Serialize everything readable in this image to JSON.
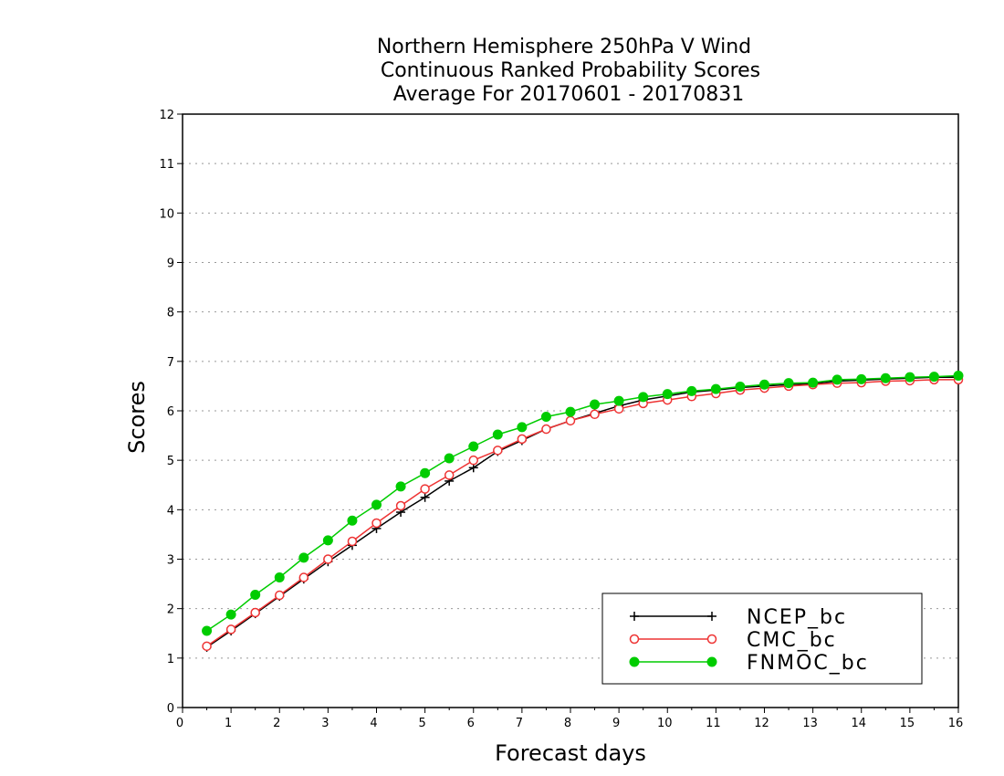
{
  "chart_data": {
    "type": "line",
    "title": [
      "Northern Hemisphere 250hPa V Wind",
      "Continuous Ranked Probability Scores",
      "Average For 20170601 - 20170831"
    ],
    "xlabel": "Forecast days",
    "ylabel": "Scores",
    "xlim": [
      0,
      16
    ],
    "ylim": [
      0,
      12
    ],
    "xticks": [
      "0",
      "1",
      "2",
      "3",
      "4",
      "5",
      "6",
      "7",
      "8",
      "9",
      "10",
      "11",
      "12",
      "13",
      "14",
      "15",
      "16"
    ],
    "yticks": [
      "0",
      "1",
      "2",
      "3",
      "4",
      "5",
      "6",
      "7",
      "8",
      "9",
      "10",
      "11",
      "12"
    ],
    "grid": "horizontal dotted",
    "legend_position": "bottom-right",
    "x": [
      0.5,
      1,
      1.5,
      2,
      2.5,
      3,
      3.5,
      4,
      4.5,
      5,
      5.5,
      6,
      6.5,
      7,
      7.5,
      8,
      8.5,
      9,
      9.5,
      10,
      10.5,
      11,
      11.5,
      12,
      12.5,
      13,
      13.5,
      14,
      14.5,
      15,
      15.5,
      16
    ],
    "series": [
      {
        "name": "NCEP_bc",
        "color": "#000000",
        "marker": "plus",
        "values": [
          1.22,
          1.55,
          1.9,
          2.25,
          2.6,
          2.95,
          3.28,
          3.62,
          3.95,
          4.25,
          4.58,
          4.85,
          5.18,
          5.4,
          5.63,
          5.8,
          5.95,
          6.1,
          6.22,
          6.3,
          6.38,
          6.42,
          6.47,
          6.5,
          6.53,
          6.55,
          6.6,
          6.62,
          6.64,
          6.66,
          6.68,
          6.68
        ]
      },
      {
        "name": "CMC_bc",
        "color": "#ee3333",
        "marker": "open-circle",
        "values": [
          1.24,
          1.58,
          1.92,
          2.27,
          2.63,
          3.0,
          3.36,
          3.73,
          4.08,
          4.42,
          4.7,
          5.0,
          5.2,
          5.43,
          5.63,
          5.8,
          5.93,
          6.04,
          6.15,
          6.22,
          6.29,
          6.35,
          6.42,
          6.46,
          6.5,
          6.53,
          6.56,
          6.57,
          6.6,
          6.61,
          6.63,
          6.63
        ]
      },
      {
        "name": "FNMOC_bc",
        "color": "#00cc00",
        "marker": "filled-circle",
        "values": [
          1.55,
          1.88,
          2.28,
          2.63,
          3.03,
          3.38,
          3.78,
          4.1,
          4.47,
          4.74,
          5.04,
          5.28,
          5.52,
          5.67,
          5.88,
          5.98,
          6.13,
          6.2,
          6.28,
          6.34,
          6.4,
          6.44,
          6.49,
          6.53,
          6.56,
          6.57,
          6.63,
          6.64,
          6.66,
          6.68,
          6.69,
          6.71
        ]
      }
    ]
  }
}
